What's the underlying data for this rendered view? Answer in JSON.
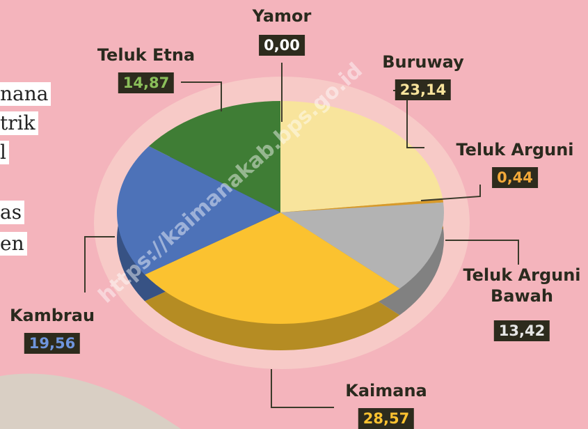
{
  "chart_data": {
    "type": "pie",
    "categories": [
      "Yamor",
      "Buruway",
      "Teluk Arguni",
      "Teluk Arguni Bawah",
      "Kaimana",
      "Kambrau",
      "Teluk Etna"
    ],
    "values": [
      0.0,
      23.14,
      0.44,
      13.42,
      28.57,
      19.56,
      14.87
    ],
    "value_labels": [
      "0,00",
      "23,14",
      "0,44",
      "13,42",
      "28,57",
      "19,56",
      "14,87"
    ],
    "colors": [
      "#8a8a3a",
      "#f8e49c",
      "#d89a2a",
      "#b3b3b3",
      "#fbc230",
      "#4d72b8",
      "#3f7d35"
    ],
    "label_colors": [
      "#ffffff",
      "#f8e49c",
      "#f3a93a",
      "#e6e6e6",
      "#fbc230",
      "#6f95dd",
      "#8bbf5a"
    ]
  },
  "side_text": [
    "nana",
    "trik",
    "l",
    "as",
    "en"
  ],
  "watermark": "https://kaimanakab.bps.go.id"
}
